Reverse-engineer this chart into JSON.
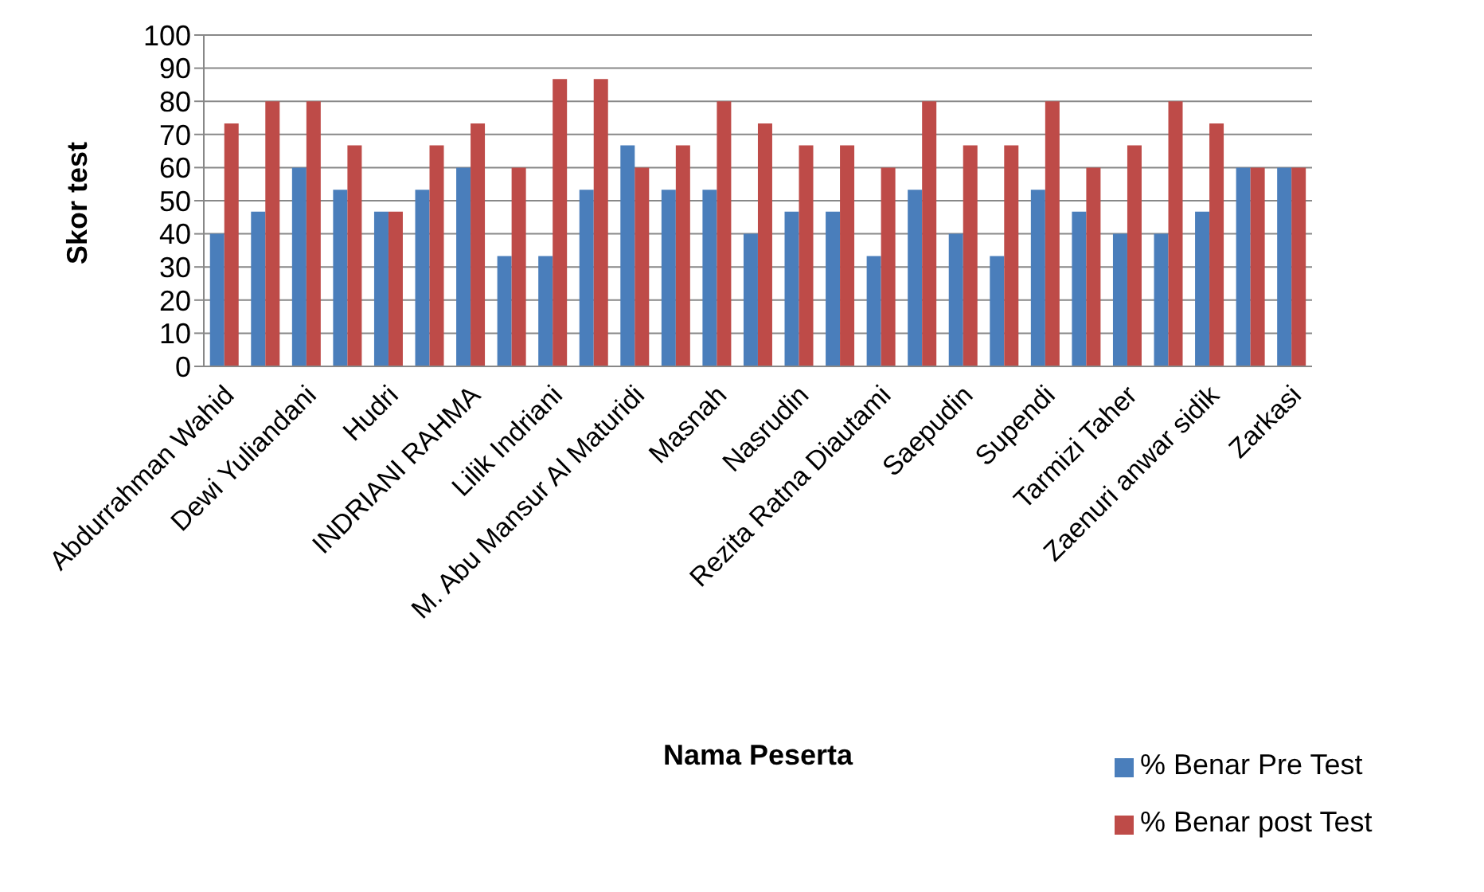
{
  "chart_data": {
    "type": "bar",
    "xlabel": "Nama Peserta",
    "ylabel": "Skor test",
    "categories": [
      "Abdurrahman Wahid",
      null,
      "Dewi Yuliandani",
      null,
      "Hudri",
      null,
      "INDRIANI RAHMA",
      null,
      "Lilik Indriani",
      null,
      "M. Abu Mansur Al Maturidi",
      null,
      "Masnah",
      null,
      "Nasrudin",
      null,
      "Rezita Ratna Diautami",
      null,
      "Saepudin",
      null,
      "Supendi",
      null,
      "Tarmizi Taher",
      null,
      "Zaenuri anwar sidik",
      null,
      "Zarkasi"
    ],
    "series": [
      {
        "name": "% Benar Pre Test",
        "color": "#4a7ebb",
        "values": [
          40,
          46.7,
          60,
          53.3,
          46.7,
          53.3,
          60,
          33.3,
          33.3,
          53.3,
          66.7,
          53.3,
          53.3,
          40,
          46.7,
          46.7,
          33.3,
          53.3,
          40,
          33.3,
          53.3,
          46.7,
          40,
          40,
          46.7,
          60,
          60
        ]
      },
      {
        "name": "% Benar post Test",
        "color": "#be4b48",
        "values": [
          73.3,
          80,
          80,
          66.7,
          46.7,
          66.7,
          73.3,
          60,
          86.7,
          86.7,
          60,
          66.7,
          80,
          73.3,
          66.7,
          66.7,
          60,
          80,
          66.7,
          66.7,
          80,
          60,
          66.7,
          80,
          73.3,
          60,
          60
        ]
      }
    ],
    "ylim": [
      0,
      100
    ],
    "yticks": [
      0,
      10,
      20,
      30,
      40,
      50,
      60,
      70,
      80,
      90,
      100
    ],
    "grid": "y",
    "legend": "bottom right"
  }
}
